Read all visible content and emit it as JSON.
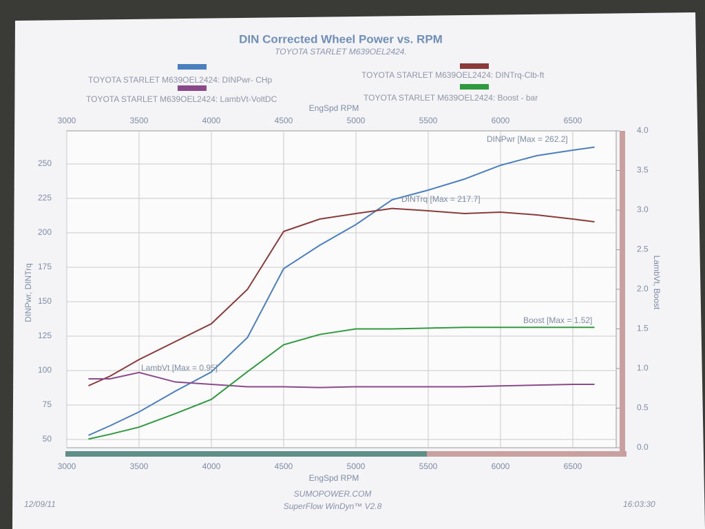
{
  "chart_data": {
    "type": "line",
    "title": "DIN Corrected Wheel Power vs. RPM",
    "subtitle": "TOYOTA STARLET M639OEL2424.",
    "xlabel": "EngSpd  RPM",
    "ylabel": "DINPwr, DINTrq",
    "y2label": "LambVt, Boost",
    "x": [
      3150,
      3300,
      3500,
      3750,
      4000,
      4250,
      4500,
      4750,
      5000,
      5250,
      5500,
      5750,
      6000,
      6250,
      6500,
      6650
    ],
    "series": [
      {
        "name": "TOYOTA STARLET M639OEL2424: DINPwr- CHp",
        "color": "#4a7fc0",
        "annotation": "DINPwr [Max = 262.2]",
        "values": [
          53,
          60,
          70,
          85,
          99,
          124,
          174,
          191,
          206,
          224,
          231,
          239,
          249,
          256,
          260,
          262.2
        ]
      },
      {
        "name": "TOYOTA STARLET M639OEL2424: DINTrq-Clb-ft",
        "color": "#8b3a3a",
        "annotation": "DINTrq [Max = 217.7]",
        "values": [
          89,
          96,
          108,
          121,
          134,
          159,
          201,
          210,
          214,
          217.7,
          216,
          214,
          215,
          213,
          210,
          208
        ]
      },
      {
        "name": "TOYOTA STARLET M639OEL2424: LambVt-VoltDC",
        "color": "#8a4a8a",
        "axis": "y2",
        "annotation": "LambVt [Max = 0.95]",
        "values": [
          0.87,
          0.87,
          0.95,
          0.83,
          0.8,
          0.77,
          0.77,
          0.76,
          0.77,
          0.77,
          0.77,
          0.77,
          0.78,
          0.79,
          0.8,
          0.8
        ]
      },
      {
        "name": "TOYOTA STARLET M639OEL2424: Boost - bar",
        "color": "#2f9a3f",
        "axis": "y2",
        "annotation": "Boost  [Max = 1.52]",
        "values": [
          0.11,
          0.17,
          0.26,
          0.43,
          0.61,
          0.96,
          1.3,
          1.43,
          1.5,
          1.5,
          1.51,
          1.52,
          1.52,
          1.52,
          1.52,
          1.52
        ]
      }
    ],
    "xlim": [
      3000,
      6800
    ],
    "xticks": [
      3000,
      3500,
      4000,
      4500,
      5000,
      5500,
      6000,
      6500
    ],
    "ylim": [
      44,
      274
    ],
    "yticks": [
      50,
      75,
      100,
      125,
      150,
      175,
      200,
      225,
      250
    ],
    "y2lim": [
      0,
      4
    ],
    "y2ticks": [
      {
        "value": 0,
        "label": "0.0"
      },
      0.5,
      {
        "value": 1,
        "label": "1.0"
      },
      1.5,
      {
        "value": 2,
        "label": "2.0"
      },
      2.5,
      {
        "value": 3,
        "label": "3.0"
      },
      3.5,
      {
        "value": 4,
        "label": "4.0"
      }
    ],
    "grid": true
  },
  "footer": {
    "date": "12/09/11",
    "site": "SUMOPOWER.COM",
    "software": "SuperFlow WinDyn™ V2.8",
    "time": "16:03:30"
  }
}
